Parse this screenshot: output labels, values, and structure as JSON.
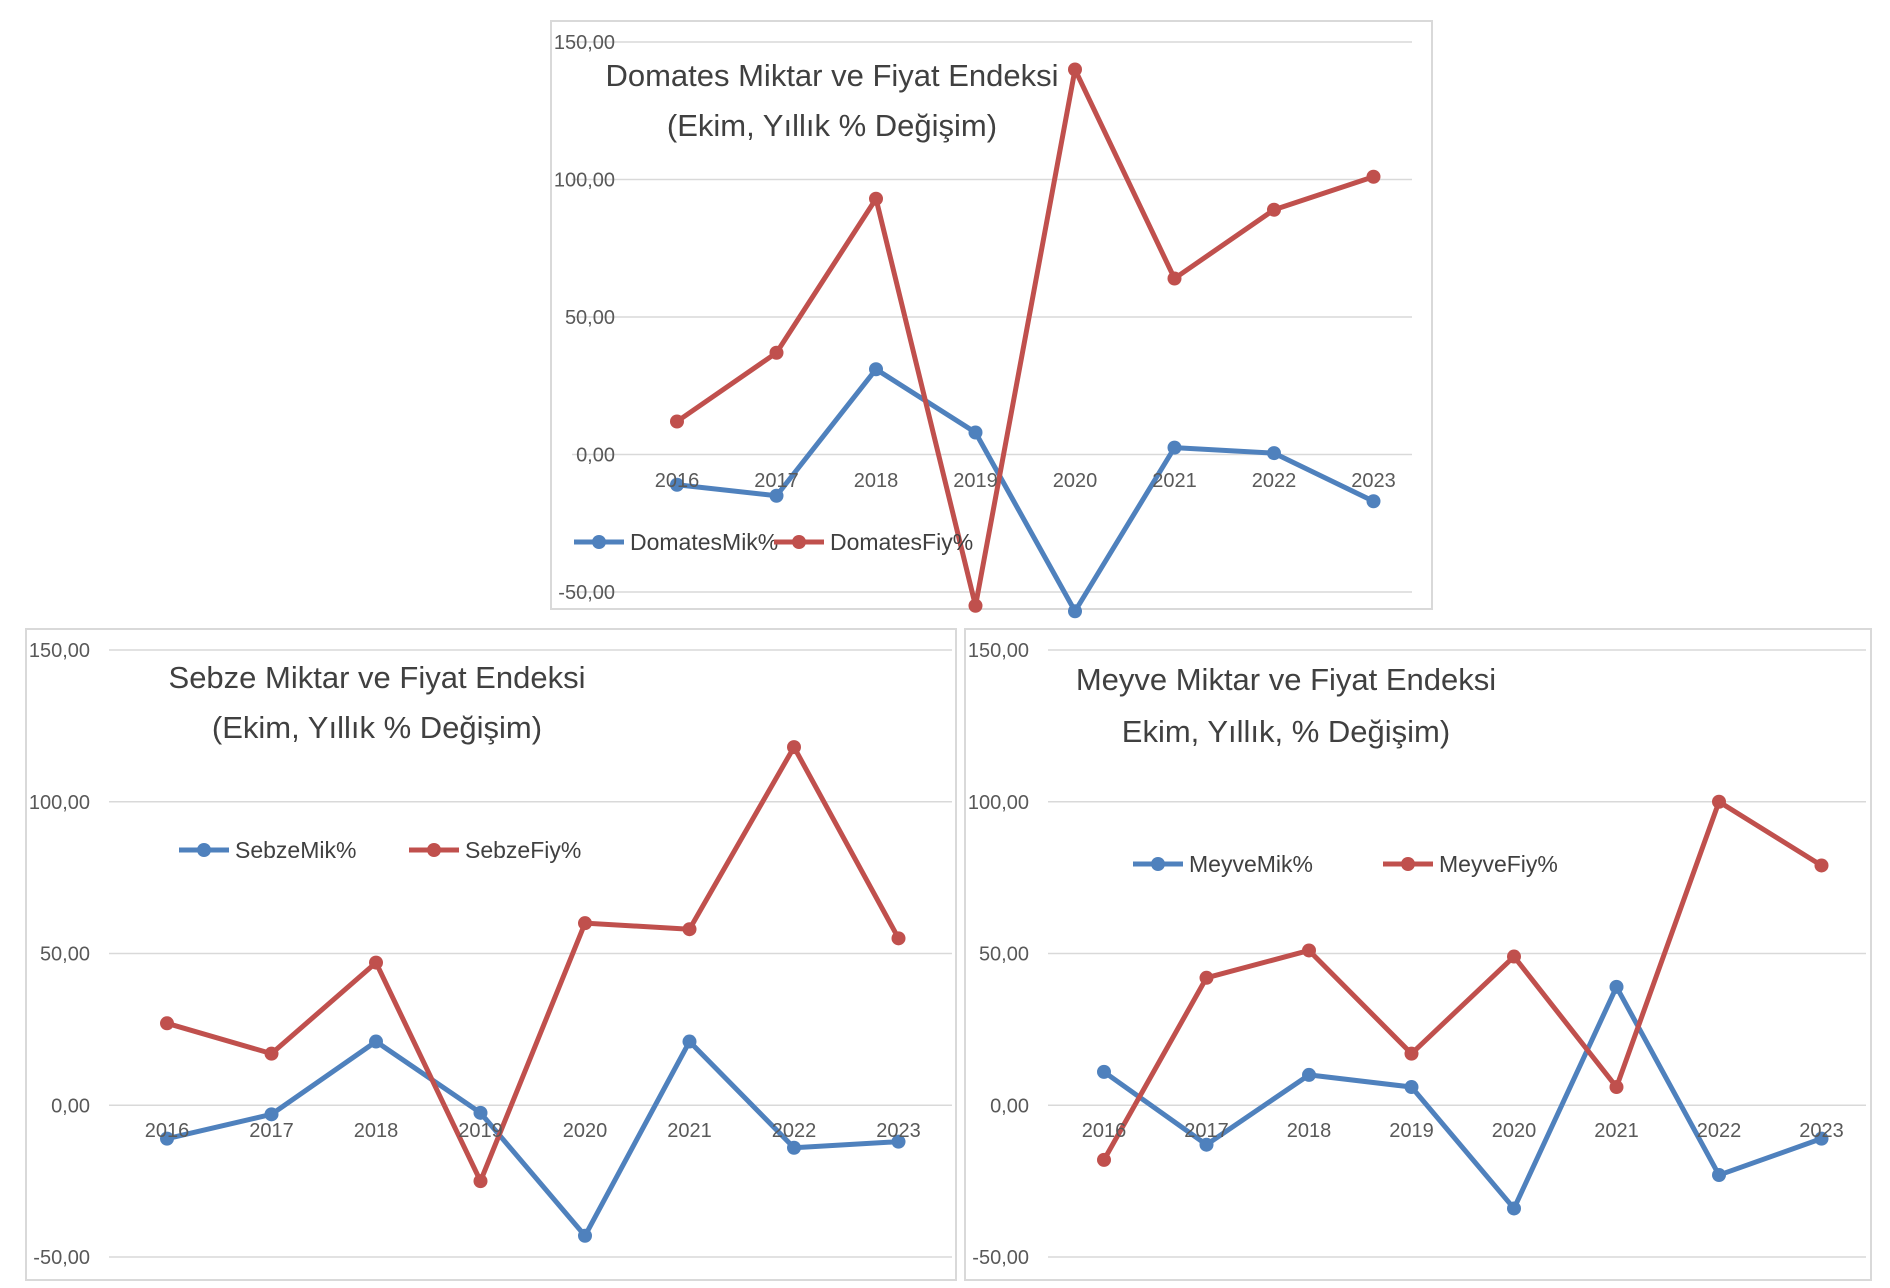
{
  "chart_data": [
    {
      "id": "domates",
      "type": "line",
      "title": [
        "Domates Miktar ve Fiyat Endeksi",
        "(Ekim, Yıllık % Değişim)"
      ],
      "categories": [
        "2016",
        "2017",
        "2018",
        "2019",
        "2020",
        "2021",
        "2022",
        "2023"
      ],
      "ylim": [
        -50,
        150
      ],
      "yticks": [
        "150,00",
        "100,00",
        "50,00",
        "0,00",
        "-50,00"
      ],
      "gridlines": true,
      "legend_position": "inside-bottom-left",
      "series": [
        {
          "name": "DomatesMik%",
          "color": "#4f81bd",
          "values": [
            -11,
            -15,
            31,
            8,
            -57,
            2.5,
            0.5,
            -17
          ]
        },
        {
          "name": "DomatesFiy%",
          "color": "#c0504d",
          "values": [
            12,
            37,
            93,
            -55,
            140,
            64,
            89,
            101
          ]
        }
      ]
    },
    {
      "id": "sebze",
      "type": "line",
      "title": [
        "Sebze Miktar ve Fiyat Endeksi",
        "(Ekim, Yıllık % Değişim)"
      ],
      "categories": [
        "2016",
        "2017",
        "2018",
        "2019",
        "2020",
        "2021",
        "2022",
        "2023"
      ],
      "ylim": [
        -50,
        150
      ],
      "yticks": [
        "150,00",
        "100,00",
        "50,00",
        "0,00",
        "-50,00"
      ],
      "gridlines": true,
      "legend_position": "inside-top-left",
      "series": [
        {
          "name": "SebzeMik%",
          "color": "#4f81bd",
          "values": [
            -11,
            -3,
            21,
            -2.5,
            -43,
            21,
            -14,
            -12
          ]
        },
        {
          "name": "SebzeFiy%",
          "color": "#c0504d",
          "values": [
            27,
            17,
            47,
            -25,
            60,
            58,
            118,
            55
          ]
        }
      ]
    },
    {
      "id": "meyve",
      "type": "line",
      "title": [
        "Meyve Miktar ve Fiyat Endeksi",
        "Ekim, Yıllık, % Değişim)"
      ],
      "categories": [
        "2016",
        "2017",
        "2018",
        "2019",
        "2020",
        "2021",
        "2022",
        "2023"
      ],
      "ylim": [
        -50,
        150
      ],
      "yticks": [
        "150,00",
        "100,00",
        "50,00",
        "0,00",
        "-50,00"
      ],
      "gridlines": true,
      "legend_position": "inside-top-left",
      "series": [
        {
          "name": "MeyveMik%",
          "color": "#4f81bd",
          "values": [
            11,
            -13,
            10,
            6,
            -34,
            39,
            -23,
            -11
          ]
        },
        {
          "name": "MeyveFiy%",
          "color": "#c0504d",
          "values": [
            -18,
            42,
            51,
            17,
            49,
            6,
            100,
            79
          ]
        }
      ]
    }
  ]
}
